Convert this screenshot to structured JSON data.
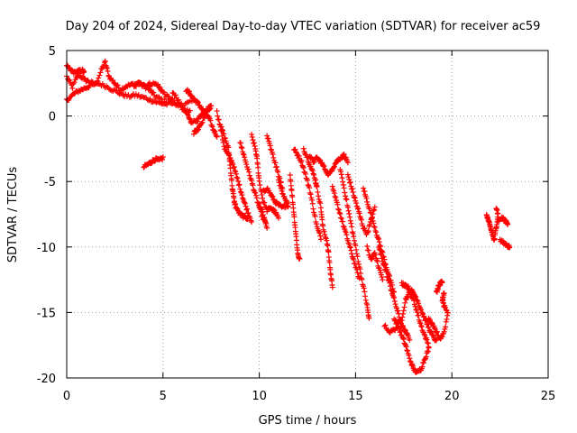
{
  "chart_data": {
    "type": "scatter",
    "title": "Day 204 of 2024, Sidereal Day-to-day VTEC variation (SDTVAR) for receiver ac59",
    "xlabel": "GPS time / hours",
    "ylabel": "SDTVAR / TECUs",
    "xlim": [
      0,
      25
    ],
    "ylim": [
      -20,
      5
    ],
    "x_ticks": [
      "0",
      "5",
      "10",
      "15",
      "20",
      "25"
    ],
    "y_ticks": [
      "5",
      "0",
      "-5",
      "-10",
      "-15",
      "-20"
    ],
    "grid": true,
    "marker": "+",
    "series_color": "#ff0000",
    "segments": [
      [
        [
          0.0,
          3.0
        ],
        [
          0.3,
          2.2
        ],
        [
          0.6,
          3.2
        ],
        [
          0.9,
          2.8
        ],
        [
          1.2,
          2.6
        ],
        [
          1.5,
          2.4
        ],
        [
          1.8,
          3.5
        ],
        [
          2.0,
          4.1
        ],
        [
          2.2,
          3.0
        ],
        [
          2.5,
          2.5
        ],
        [
          2.8,
          2.0
        ],
        [
          3.1,
          2.3
        ],
        [
          3.4,
          2.4
        ],
        [
          3.7,
          2.5
        ],
        [
          4.0,
          2.3
        ],
        [
          4.3,
          2.0
        ],
        [
          4.6,
          1.5
        ],
        [
          5.0,
          1.2
        ],
        [
          5.5,
          1.0
        ],
        [
          6.0,
          0.8
        ],
        [
          6.5,
          1.1
        ]
      ],
      [
        [
          0.0,
          1.2
        ],
        [
          0.3,
          1.6
        ],
        [
          0.6,
          1.9
        ],
        [
          0.9,
          2.1
        ],
        [
          1.2,
          2.3
        ],
        [
          1.6,
          2.5
        ],
        [
          2.0,
          2.3
        ],
        [
          2.4,
          2.0
        ],
        [
          2.8,
          1.7
        ],
        [
          3.2,
          1.5
        ],
        [
          3.6,
          1.6
        ],
        [
          4.0,
          1.4
        ],
        [
          4.4,
          1.2
        ],
        [
          4.8,
          1.0
        ],
        [
          5.2,
          0.9
        ],
        [
          5.6,
          1.0
        ],
        [
          6.0,
          0.6
        ],
        [
          6.4,
          0.3
        ]
      ],
      [
        [
          0.0,
          3.8
        ],
        [
          0.2,
          3.5
        ],
        [
          0.4,
          3.3
        ],
        [
          0.6,
          3.4
        ],
        [
          0.8,
          3.5
        ],
        [
          0.9,
          3.3
        ]
      ],
      [
        [
          3.5,
          2.2
        ],
        [
          3.8,
          2.6
        ],
        [
          4.1,
          2.3
        ],
        [
          4.4,
          2.5
        ],
        [
          4.7,
          2.4
        ],
        [
          4.9,
          2.0
        ],
        [
          5.2,
          1.5
        ],
        [
          5.5,
          1.2
        ]
      ],
      [
        [
          4.0,
          -3.9
        ],
        [
          4.2,
          -3.7
        ],
        [
          4.4,
          -3.5
        ],
        [
          4.6,
          -3.3
        ],
        [
          4.8,
          -3.4
        ],
        [
          5.0,
          -3.2
        ]
      ],
      [
        [
          5.5,
          1.8
        ],
        [
          5.8,
          1.2
        ],
        [
          6.1,
          0.5
        ],
        [
          6.3,
          0.0
        ],
        [
          6.5,
          -0.5
        ],
        [
          6.8,
          -0.3
        ],
        [
          7.0,
          0.2
        ],
        [
          7.3,
          0.5
        ],
        [
          7.5,
          0.8
        ],
        [
          7.3,
          0.3
        ],
        [
          7.0,
          -0.5
        ],
        [
          6.8,
          -1.0
        ],
        [
          6.6,
          -1.3
        ]
      ],
      [
        [
          6.2,
          2.0
        ],
        [
          6.4,
          1.7
        ],
        [
          6.6,
          1.3
        ],
        [
          6.8,
          1.0
        ],
        [
          7.0,
          0.6
        ],
        [
          7.2,
          0.2
        ],
        [
          7.4,
          -0.2
        ],
        [
          7.6,
          -1.0
        ],
        [
          7.8,
          -1.5
        ]
      ],
      [
        [
          7.8,
          0.3
        ],
        [
          8.0,
          -1.0
        ],
        [
          8.2,
          -2.5
        ],
        [
          8.4,
          -3.0
        ],
        [
          8.6,
          -3.5
        ],
        [
          8.8,
          -4.5
        ],
        [
          9.0,
          -5.5
        ],
        [
          9.2,
          -6.5
        ],
        [
          9.4,
          -7.3
        ],
        [
          9.6,
          -8.0
        ]
      ],
      [
        [
          8.0,
          -0.8
        ],
        [
          8.2,
          -1.6
        ],
        [
          8.4,
          -2.5
        ],
        [
          8.5,
          -4.0
        ],
        [
          8.6,
          -5.5
        ],
        [
          8.7,
          -6.5
        ],
        [
          8.8,
          -7.0
        ],
        [
          9.0,
          -7.5
        ],
        [
          9.2,
          -7.7
        ],
        [
          9.4,
          -7.8
        ]
      ],
      [
        [
          9.0,
          -2.0
        ],
        [
          9.2,
          -3.0
        ],
        [
          9.4,
          -4.0
        ],
        [
          9.6,
          -5.0
        ],
        [
          9.8,
          -6.0
        ],
        [
          10.0,
          -7.0
        ],
        [
          10.2,
          -7.8
        ],
        [
          10.4,
          -8.5
        ],
        [
          10.2,
          -7.5
        ],
        [
          10.0,
          -6.8
        ]
      ],
      [
        [
          9.6,
          -1.5
        ],
        [
          9.8,
          -2.5
        ],
        [
          9.9,
          -3.5
        ],
        [
          10.0,
          -5.0
        ],
        [
          10.2,
          -6.5
        ],
        [
          10.4,
          -7.2
        ],
        [
          10.6,
          -7.0
        ],
        [
          10.8,
          -7.3
        ],
        [
          11.0,
          -7.8
        ]
      ],
      [
        [
          10.2,
          -5.8
        ],
        [
          10.4,
          -5.5
        ],
        [
          10.6,
          -6.0
        ],
        [
          10.8,
          -6.5
        ],
        [
          11.0,
          -6.8
        ],
        [
          11.2,
          -7.0
        ],
        [
          11.4,
          -6.8
        ]
      ],
      [
        [
          11.6,
          -4.5
        ],
        [
          11.7,
          -6.0
        ],
        [
          11.8,
          -7.5
        ],
        [
          11.9,
          -9.0
        ],
        [
          12.0,
          -10.5
        ],
        [
          12.1,
          -11.0
        ]
      ],
      [
        [
          11.8,
          -2.5
        ],
        [
          12.0,
          -3.0
        ],
        [
          12.2,
          -3.5
        ],
        [
          12.4,
          -4.5
        ],
        [
          12.6,
          -5.5
        ],
        [
          12.8,
          -7.0
        ],
        [
          13.0,
          -8.5
        ],
        [
          13.2,
          -9.3
        ]
      ],
      [
        [
          12.3,
          -2.5
        ],
        [
          12.5,
          -3.2
        ],
        [
          12.7,
          -4.0
        ],
        [
          12.9,
          -4.8
        ],
        [
          13.0,
          -5.5
        ],
        [
          13.2,
          -7.0
        ],
        [
          13.3,
          -8.5
        ],
        [
          13.5,
          -9.5
        ],
        [
          13.6,
          -10.5
        ],
        [
          13.7,
          -12.0
        ],
        [
          13.8,
          -13.0
        ]
      ],
      [
        [
          12.6,
          -3.0
        ],
        [
          12.8,
          -3.5
        ],
        [
          13.0,
          -3.2
        ],
        [
          13.2,
          -3.5
        ],
        [
          13.4,
          -4.0
        ],
        [
          13.6,
          -4.5
        ],
        [
          13.8,
          -4.0
        ],
        [
          14.0,
          -3.5
        ],
        [
          14.2,
          -3.2
        ],
        [
          14.4,
          -3.0
        ],
        [
          14.6,
          -3.5
        ]
      ],
      [
        [
          13.8,
          -5.5
        ],
        [
          14.0,
          -6.5
        ],
        [
          14.2,
          -7.5
        ],
        [
          14.4,
          -8.5
        ],
        [
          14.6,
          -9.5
        ],
        [
          14.8,
          -10.5
        ],
        [
          15.0,
          -11.5
        ],
        [
          15.2,
          -12.5
        ]
      ],
      [
        [
          14.2,
          -4.0
        ],
        [
          14.4,
          -5.5
        ],
        [
          14.6,
          -7.0
        ],
        [
          14.8,
          -8.5
        ],
        [
          15.0,
          -10.0
        ],
        [
          15.2,
          -11.5
        ],
        [
          15.4,
          -13.0
        ],
        [
          15.6,
          -14.5
        ],
        [
          15.7,
          -15.5
        ]
      ],
      [
        [
          14.6,
          -4.5
        ],
        [
          14.8,
          -5.5
        ],
        [
          15.0,
          -6.5
        ],
        [
          15.2,
          -7.5
        ],
        [
          15.4,
          -8.5
        ],
        [
          15.6,
          -9.0
        ],
        [
          15.8,
          -8.0
        ],
        [
          16.0,
          -7.0
        ]
      ],
      [
        [
          15.4,
          -5.5
        ],
        [
          15.6,
          -6.5
        ],
        [
          15.8,
          -7.5
        ],
        [
          16.0,
          -8.5
        ],
        [
          16.2,
          -9.5
        ],
        [
          16.4,
          -10.5
        ],
        [
          16.6,
          -11.5
        ],
        [
          16.8,
          -12.5
        ],
        [
          17.0,
          -13.5
        ]
      ],
      [
        [
          16.2,
          -10.0
        ],
        [
          16.4,
          -11.0
        ],
        [
          16.6,
          -12.0
        ],
        [
          16.8,
          -13.0
        ],
        [
          17.0,
          -14.0
        ],
        [
          17.2,
          -15.0
        ],
        [
          17.4,
          -16.0
        ],
        [
          17.6,
          -16.5
        ],
        [
          17.8,
          -17.0
        ]
      ],
      [
        [
          16.5,
          -16.0
        ],
        [
          16.8,
          -16.5
        ],
        [
          17.1,
          -16.2
        ],
        [
          17.4,
          -15.5
        ],
        [
          17.6,
          -14.0
        ],
        [
          17.8,
          -13.5
        ],
        [
          18.0,
          -14.0
        ],
        [
          18.2,
          -15.0
        ],
        [
          18.4,
          -16.0
        ],
        [
          18.6,
          -16.8
        ],
        [
          18.8,
          -17.5
        ]
      ],
      [
        [
          17.0,
          -15.5
        ],
        [
          17.2,
          -16.0
        ],
        [
          17.4,
          -16.8
        ],
        [
          17.6,
          -17.5
        ],
        [
          17.8,
          -18.5
        ],
        [
          18.0,
          -19.3
        ],
        [
          18.2,
          -19.6
        ],
        [
          18.4,
          -19.3
        ],
        [
          18.6,
          -18.5
        ],
        [
          18.8,
          -17.8
        ]
      ],
      [
        [
          17.4,
          -12.8
        ],
        [
          17.6,
          -12.9
        ],
        [
          17.8,
          -13.2
        ],
        [
          18.0,
          -13.5
        ],
        [
          18.2,
          -14.0
        ],
        [
          18.4,
          -14.8
        ],
        [
          18.6,
          -15.5
        ],
        [
          18.8,
          -16.2
        ],
        [
          19.0,
          -16.8
        ],
        [
          19.2,
          -17.2
        ]
      ],
      [
        [
          18.8,
          -15.5
        ],
        [
          19.0,
          -16.0
        ],
        [
          19.2,
          -16.5
        ],
        [
          19.4,
          -17.0
        ],
        [
          19.6,
          -16.5
        ],
        [
          19.8,
          -15.0
        ],
        [
          19.6,
          -14.5
        ],
        [
          19.5,
          -14.0
        ],
        [
          19.6,
          -13.5
        ]
      ],
      [
        [
          19.2,
          -13.5
        ],
        [
          19.3,
          -13.0
        ],
        [
          19.4,
          -12.8
        ],
        [
          19.5,
          -12.6
        ]
      ],
      [
        [
          15.6,
          -10.0
        ],
        [
          15.8,
          -11.0
        ],
        [
          16.0,
          -10.5
        ],
        [
          16.2,
          -11.5
        ],
        [
          16.4,
          -12.5
        ]
      ],
      [
        [
          10.4,
          -1.5
        ],
        [
          10.6,
          -2.5
        ],
        [
          10.8,
          -3.5
        ],
        [
          11.0,
          -4.5
        ],
        [
          11.2,
          -5.5
        ]
      ],
      [
        [
          11.0,
          -5.0
        ],
        [
          11.2,
          -5.8
        ],
        [
          11.4,
          -6.5
        ],
        [
          11.5,
          -7.0
        ]
      ],
      [
        [
          21.8,
          -7.5
        ],
        [
          21.9,
          -8.0
        ],
        [
          22.0,
          -8.5
        ],
        [
          22.1,
          -9.0
        ],
        [
          22.2,
          -9.5
        ],
        [
          22.3,
          -8.5
        ],
        [
          22.4,
          -7.5
        ],
        [
          22.3,
          -7.0
        ]
      ],
      [
        [
          22.4,
          -8.0
        ],
        [
          22.6,
          -7.8
        ],
        [
          22.8,
          -8.0
        ],
        [
          22.9,
          -8.2
        ]
      ],
      [
        [
          22.5,
          -9.5
        ],
        [
          22.7,
          -9.7
        ],
        [
          22.9,
          -9.9
        ],
        [
          23.0,
          -10.0
        ]
      ]
    ]
  }
}
